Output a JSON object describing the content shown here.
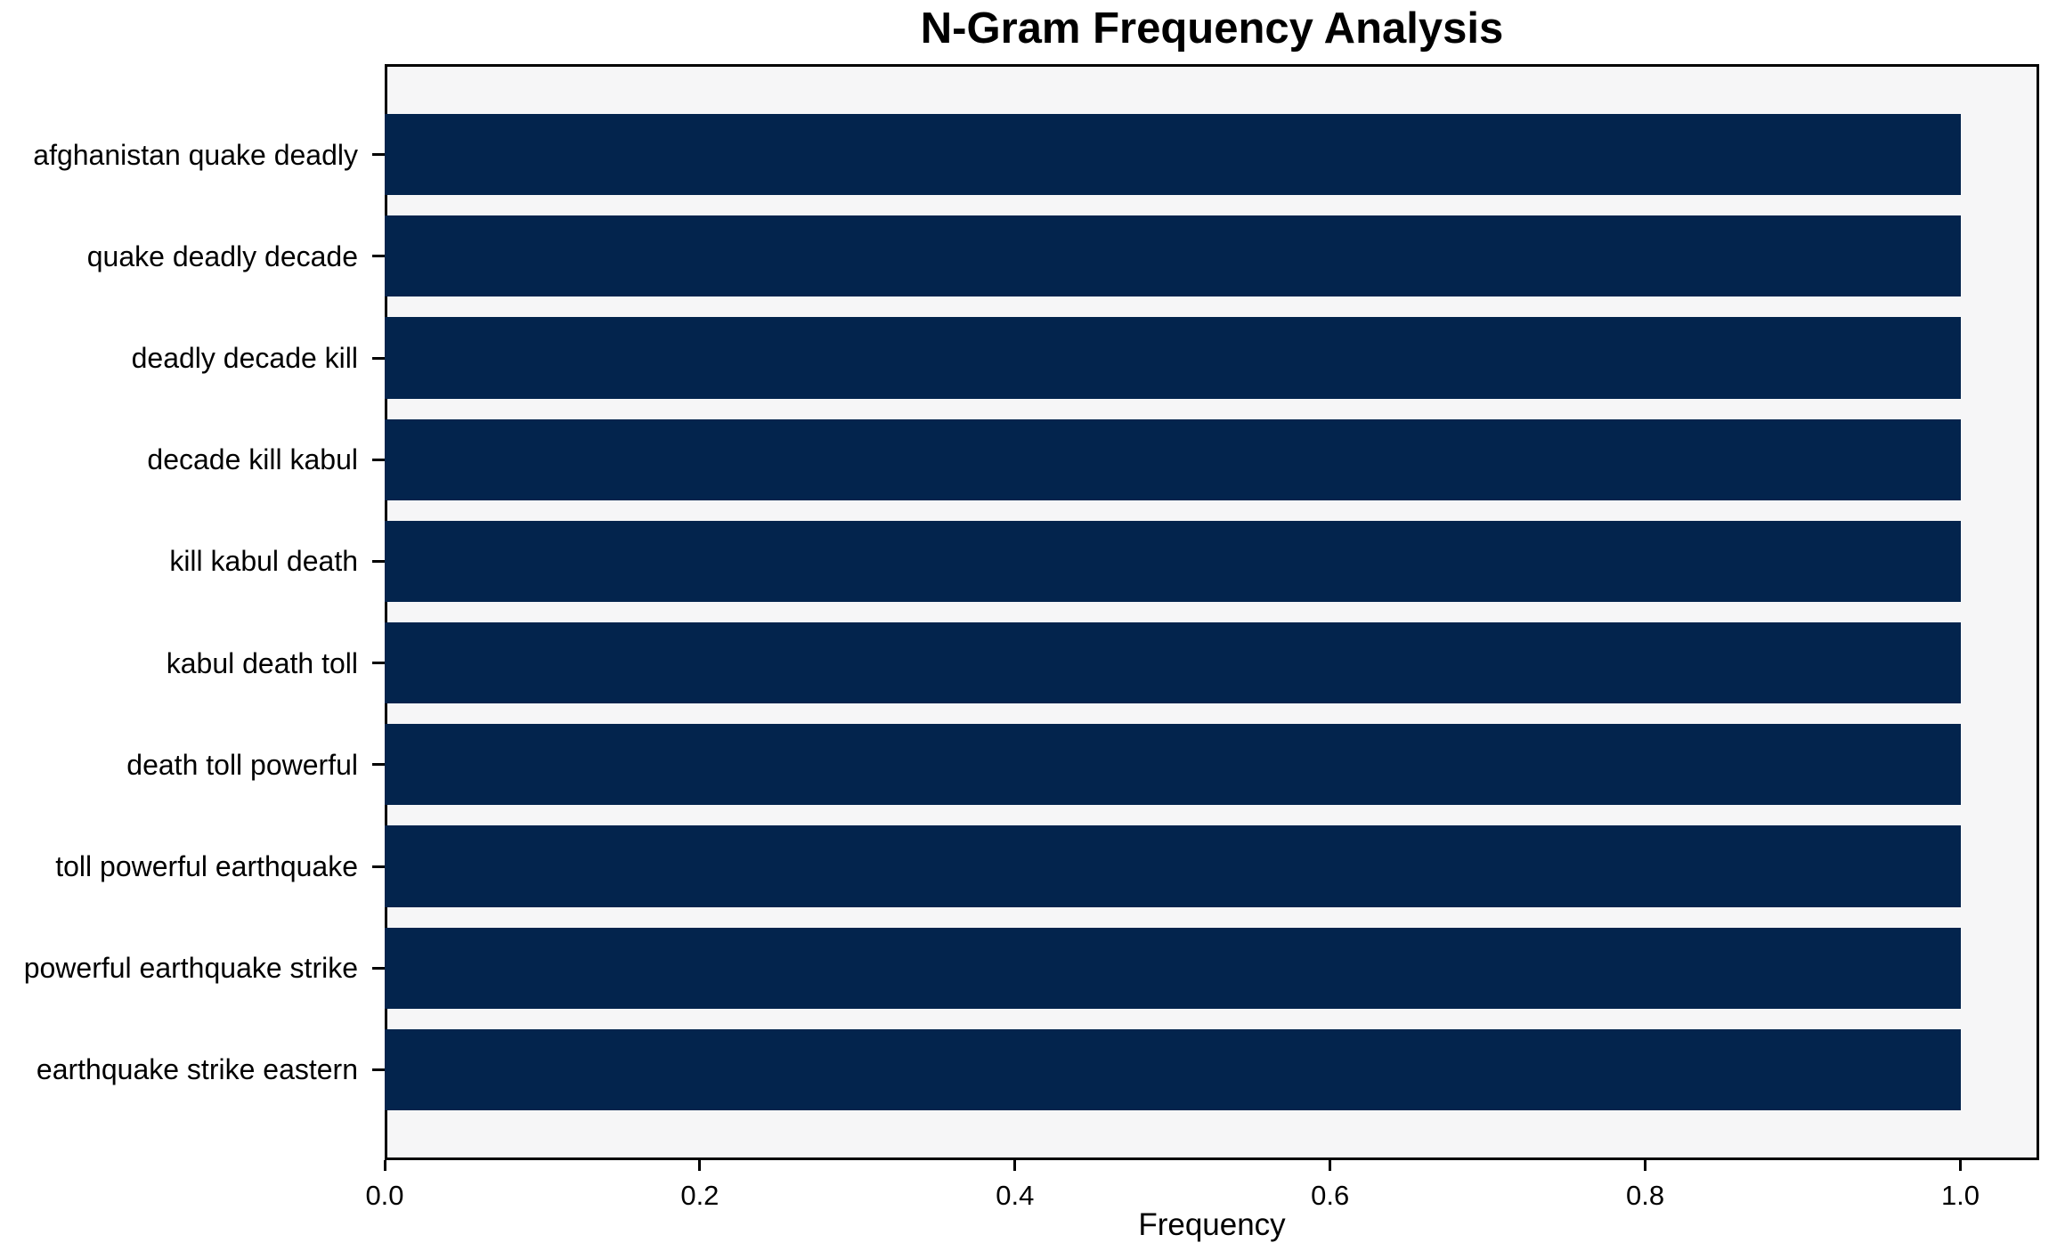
{
  "chart_data": {
    "type": "bar",
    "orientation": "horizontal",
    "title": "N-Gram Frequency Analysis",
    "xlabel": "Frequency",
    "ylabel": "",
    "categories": [
      "afghanistan quake deadly",
      "quake deadly decade",
      "deadly decade kill",
      "decade kill kabul",
      "kill kabul death",
      "kabul death toll",
      "death toll powerful",
      "toll powerful earthquake",
      "powerful earthquake strike",
      "earthquake strike eastern"
    ],
    "values": [
      1.0,
      1.0,
      1.0,
      1.0,
      1.0,
      1.0,
      1.0,
      1.0,
      1.0,
      1.0
    ],
    "xlim": [
      0.0,
      1.05
    ],
    "x_ticks": [
      {
        "value": 0.0,
        "label": "0.0"
      },
      {
        "value": 0.2,
        "label": "0.2"
      },
      {
        "value": 0.4,
        "label": "0.4"
      },
      {
        "value": 0.6,
        "label": "0.6"
      },
      {
        "value": 0.8,
        "label": "0.8"
      },
      {
        "value": 1.0,
        "label": "1.0"
      }
    ],
    "grid": false,
    "legend": null,
    "colors": {
      "bar": "#03244d",
      "plot_background": "#f6f6f7",
      "figure_background": "#ffffff",
      "spine": "#000000",
      "text": "#000000"
    }
  }
}
